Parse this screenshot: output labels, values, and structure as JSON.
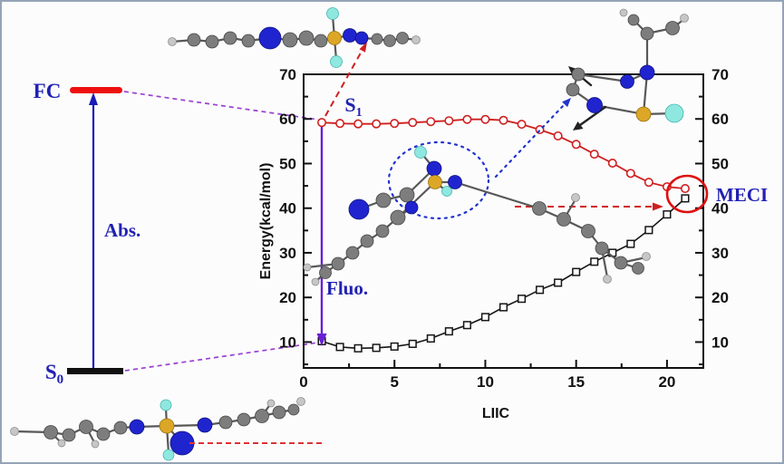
{
  "colors": {
    "blue_text": "#2121b2",
    "curve_red": "#d01f1f",
    "curve_black": "#161616",
    "purple": "#6a1fd6",
    "purple_dash": "#9a3fd0",
    "dot_blue": "#2233cc",
    "abs_blue": "#1a1ab8",
    "meci_red": "#dd1111",
    "atom_nitrogen_blue": "#2024cf",
    "atom_boron_yellow": "#dca726",
    "atom_fluorine_cyan": "#8fe8df"
  },
  "left_diagram": {
    "fc_label": "FC",
    "s0_label_main": "S",
    "s0_label_sub": "0",
    "abs_label": "Abs.",
    "fluo_label": "Fluo."
  },
  "chart_data": {
    "type": "line",
    "title": "",
    "xlabel": "LIIC",
    "ylabel": "Energy(kcal/mol)",
    "xlim": [
      0,
      22
    ],
    "ylim": [
      4.2,
      70
    ],
    "xticks": [
      0,
      5,
      10,
      15,
      20
    ],
    "yticks": [
      10,
      20,
      30,
      40,
      50,
      60,
      70
    ],
    "x_minor_step": 2.5,
    "y_minor_step": 5,
    "grid": false,
    "x": [
      1,
      2,
      3,
      4,
      5,
      6,
      7,
      8,
      9,
      10,
      11,
      12,
      13,
      14,
      15,
      16,
      17,
      18,
      19,
      20,
      21
    ],
    "series": [
      {
        "name": "S1",
        "label_main": "S",
        "label_sub": "1",
        "marker": "circle",
        "color": "#d01f1f",
        "values": [
          59.2,
          59.0,
          58.9,
          58.9,
          59.0,
          59.2,
          59.4,
          59.6,
          59.9,
          59.9,
          59.7,
          58.8,
          57.6,
          56.2,
          54.3,
          52.1,
          50.1,
          47.8,
          45.8,
          44.8,
          44.4
        ]
      },
      {
        "name": "S0",
        "label_main": "S",
        "label_sub": "0",
        "marker": "square",
        "color": "#161616",
        "values": [
          10.2,
          8.9,
          8.6,
          8.7,
          9.0,
          9.6,
          10.8,
          12.4,
          13.8,
          15.6,
          17.8,
          19.7,
          21.7,
          23.3,
          25.7,
          28.0,
          30.0,
          32.0,
          35.1,
          38.6,
          42.2
        ]
      }
    ],
    "annotations": {
      "meci_label": "MECI"
    }
  }
}
